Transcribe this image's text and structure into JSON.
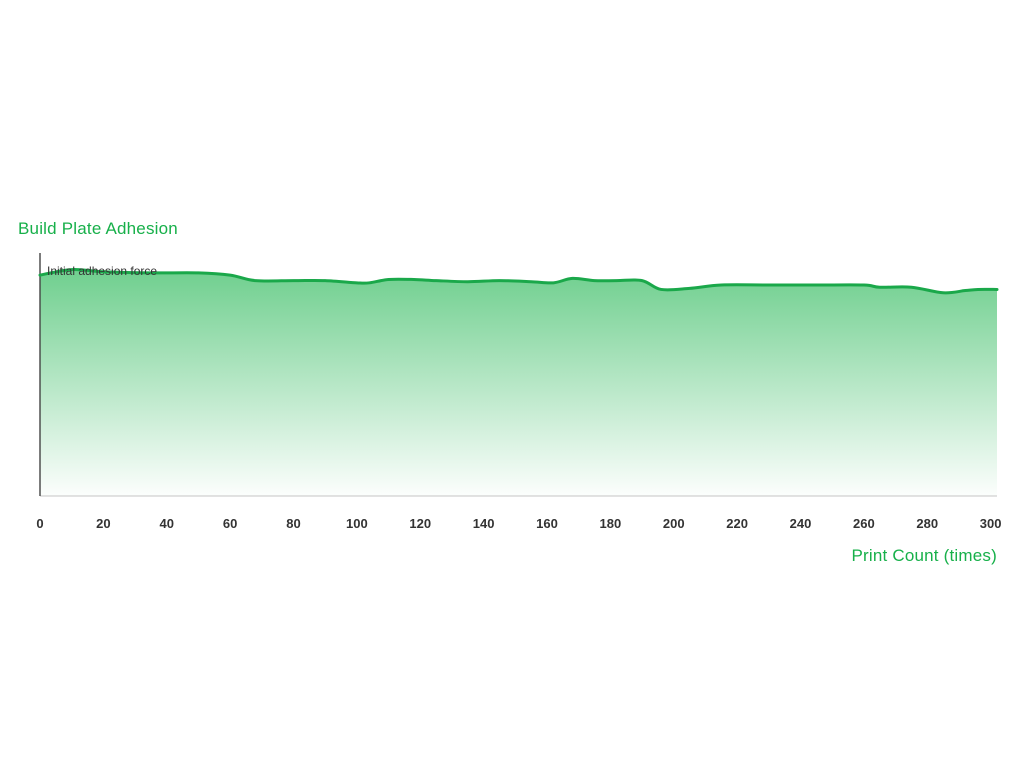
{
  "chart_data": {
    "type": "area",
    "title": "Build Plate Adhesion",
    "xlabel": "Print Count (times)",
    "ylabel": "",
    "annotation": "Initial adhesion force",
    "xlim": [
      0,
      302
    ],
    "ylim": [
      0,
      110
    ],
    "xticks": [
      0,
      20,
      40,
      60,
      80,
      100,
      120,
      140,
      160,
      180,
      200,
      220,
      240,
      260,
      280,
      300
    ],
    "grid": false,
    "series": [
      {
        "x": [
          0,
          10,
          20,
          35,
          50,
          60,
          68,
          80,
          90,
          100,
          104,
          110,
          118,
          125,
          135,
          145,
          155,
          162,
          168,
          175,
          182,
          190,
          196,
          205,
          215,
          230,
          245,
          260,
          265,
          275,
          285,
          292,
          296,
          302
        ],
        "values": [
          100,
          102.5,
          101.5,
          101,
          101,
          100,
          97.5,
          97.5,
          97.5,
          96.5,
          96.5,
          98,
          98,
          97.5,
          97,
          97.5,
          97,
          96.5,
          98.5,
          97.5,
          97.5,
          97.5,
          93.5,
          94,
          95.5,
          95.5,
          95.5,
          95.5,
          94.5,
          94.5,
          92,
          93,
          93.5,
          93.5
        ]
      }
    ]
  },
  "colors": {
    "accent": "#17b04a",
    "line": "#1aa84a",
    "fill_top": "#6fcf8e",
    "axis": "#444444",
    "baseline": "#d0d0d0"
  }
}
